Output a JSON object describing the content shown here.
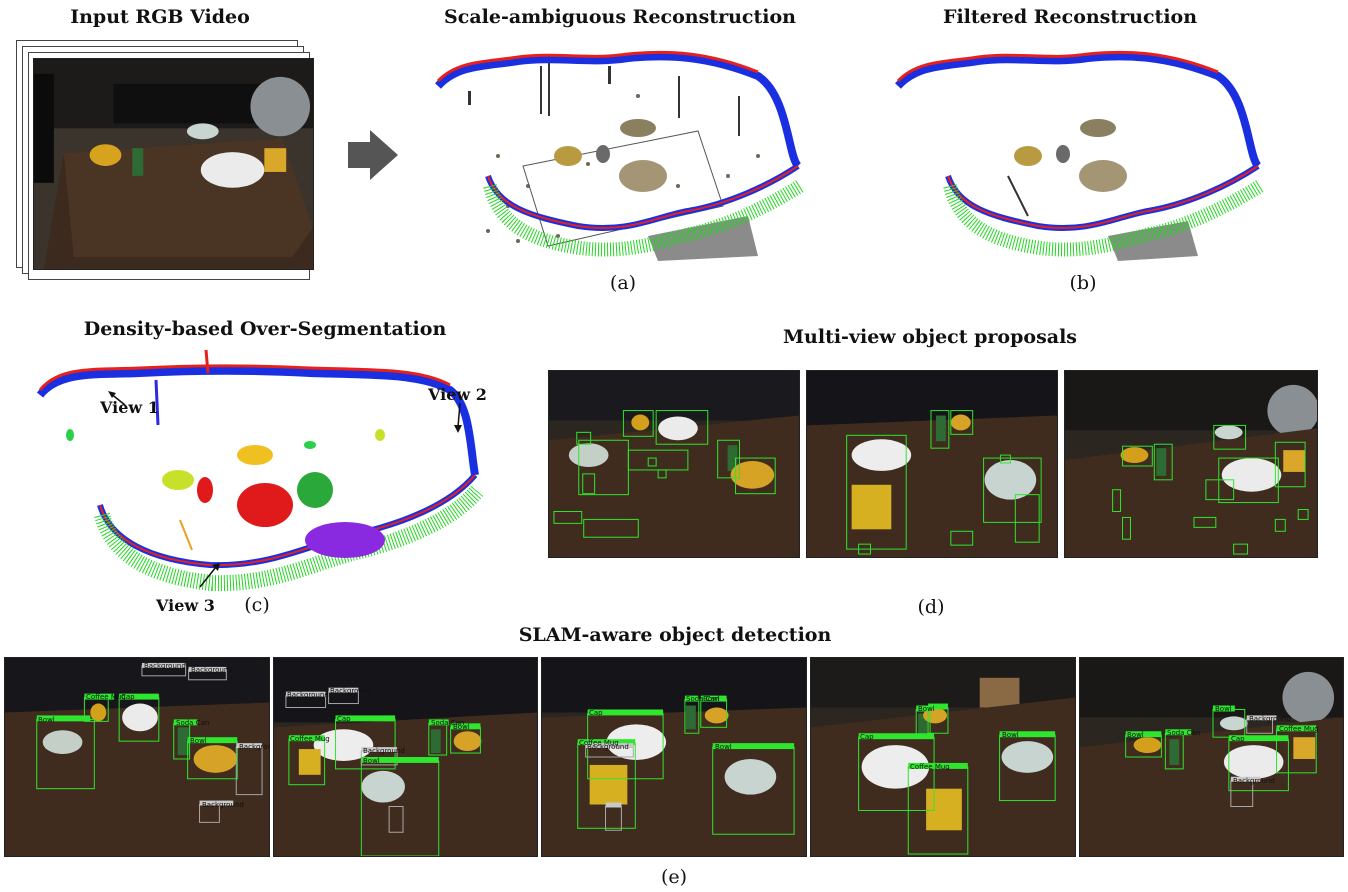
{
  "titles": {
    "input": "Input RGB Video",
    "scale_ambiguous": "Scale-ambiguous Reconstruction",
    "filtered": "Filtered Reconstruction",
    "density": "Density-based Over-Segmentation",
    "multiview": "Multi-view object proposals",
    "slam": "SLAM-aware object detection"
  },
  "captions": {
    "a": "(a)",
    "b": "(b)",
    "c": "(c)",
    "d": "(d)",
    "e": "(e)"
  },
  "views": {
    "v1": "View 1",
    "v2": "View 2",
    "v3": "View 3"
  },
  "detections": {
    "coffee_mug": "Coffee Mug",
    "cap": "Cap",
    "soda_can": "Soda Can",
    "bowl": "Bowl",
    "background": "Background"
  },
  "colors": {
    "trajectory_red": "#e8201c",
    "trajectory_blue": "#1a30e0",
    "trajectory_green": "#22d620",
    "proposal_green": "#2ee62e",
    "background_gray": "#a8a8a8"
  }
}
